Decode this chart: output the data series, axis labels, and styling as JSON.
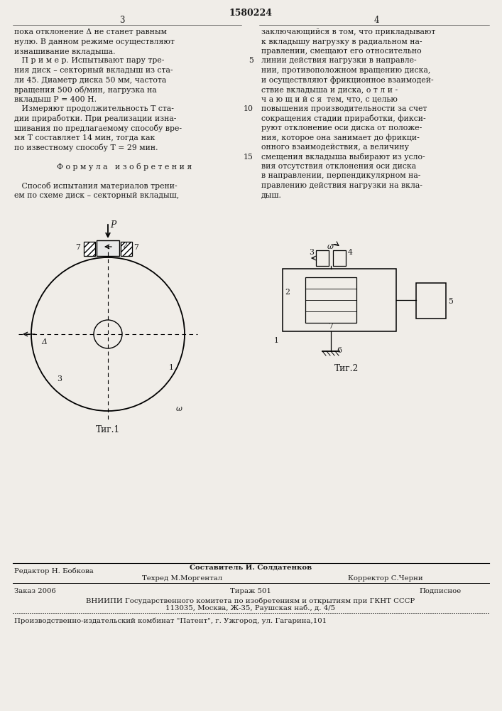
{
  "title": "1580224",
  "page_left": "3",
  "page_right": "4",
  "bg_color": "#f0ede8",
  "text_color": "#1a1a1a",
  "col1_text": [
    "пока отклонение Δ не станет равным",
    "нулю. В данном режиме осуществляют",
    "изнашивание вкладыша.",
    "   П р и м е р. Испытывают пару тре-",
    "ния диск – секторный вкладыш из ста-",
    "ли 45. Диаметр диска 50 мм, частота",
    "вращения 500 об/мин, нагрузка на",
    "вкладыш P = 400 Н.",
    "   Измеряют продолжительность Т ста-",
    "дии приработки. При реализации изна-",
    "шивания по предлагаемому способу вре-",
    "мя Т составляет 14 мин, тогда как",
    "по известному способу Т = 29 мин.",
    "",
    "Ф о р м у л а   и з о б р е т е н и я",
    "",
    "   Способ испытания материалов трени-",
    "ем по схеме диск – секторный вкладыш,"
  ],
  "col2_text": [
    "заключающийся в том, что прикладывают",
    "к вкладышу нагрузку в радиальном на-",
    "правлении, смещают его относительно",
    "линии действия нагрузки в направле-",
    "нии, противоположном вращению диска,",
    "и осуществляют фрикционное взаимодей-",
    "ствие вкладыша и диска, о т л и -",
    "ч а ю щ и й с я  тем, что, с целью",
    "повышения производительности за счет",
    "сокращения стадии приработки, фикси-",
    "руют отклонение оси диска от положе-",
    "ния, которое она занимает до фрикци-",
    "онного взаимодействия, а величину",
    "смещения вкладыша выбирают из усло-",
    "вия отсутствия отклонения оси диска",
    "в направлении, перпендикулярном на-",
    "правлению действия нагрузки на вкла-",
    "дыш."
  ],
  "footer_line1_left": "Редактор Н. Бобкова",
  "footer_line1_center": "Составитель И. Солдатенков",
  "footer_line2_center": "Техред М.Моргентал",
  "footer_line2_right": "Корректор С.Черни",
  "footer_order": "Заказ 2006",
  "footer_tirazh": "Тираж 501",
  "footer_podp": "Подписное",
  "footer_vniip": "ВНИИПИ Государственного комитета по изобретениям и открытиям при ГКНТ СССР",
  "footer_addr": "113035, Москва, Ж-35, Раушская наб., д. 4/5",
  "footer_patent": "Производственно-издательский комбинат \"Патент\", г. Ужгород, ул. Гагарина,101"
}
